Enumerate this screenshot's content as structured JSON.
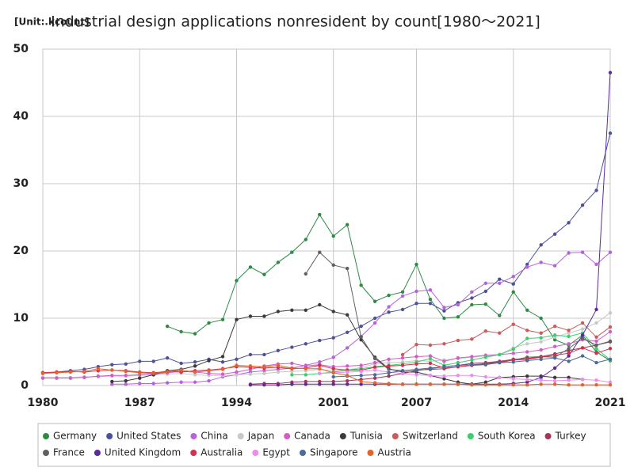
{
  "chart_data": {
    "type": "line",
    "title": "Industrial design applications nonresident by count[1980〜2021]",
    "unit_label": "[Unit:.kcount]",
    "x": [
      1980,
      1981,
      1982,
      1983,
      1984,
      1985,
      1986,
      1987,
      1988,
      1989,
      1990,
      1991,
      1992,
      1993,
      1994,
      1995,
      1996,
      1997,
      1998,
      1999,
      2000,
      2001,
      2002,
      2003,
      2004,
      2005,
      2006,
      2007,
      2008,
      2009,
      2010,
      2011,
      2012,
      2013,
      2014,
      2015,
      2016,
      2017,
      2018,
      2019,
      2020,
      2021
    ],
    "xlim": [
      1980,
      2021
    ],
    "xticks": [
      1980,
      1987,
      1994,
      2001,
      2007,
      2014,
      2021
    ],
    "ylim": [
      0,
      50
    ],
    "yticks": [
      0,
      10,
      20,
      30,
      40,
      50
    ],
    "grid": true,
    "series": [
      {
        "name": "Germany",
        "color": "#2e8b45",
        "values": [
          null,
          null,
          null,
          null,
          null,
          null,
          null,
          null,
          null,
          8.8,
          8.0,
          7.7,
          9.3,
          9.8,
          15.6,
          17.6,
          16.5,
          18.3,
          19.8,
          21.7,
          25.4,
          22.2,
          23.9,
          14.9,
          12.5,
          13.4,
          13.9,
          18.0,
          12.8,
          10.0,
          10.2,
          12.0,
          12.1,
          10.4,
          13.9,
          11.2,
          10.0,
          6.8,
          6.0,
          7.5,
          5.0,
          3.7
        ]
      },
      {
        "name": "United States",
        "color": "#4c5199",
        "values": [
          1.9,
          2.0,
          2.2,
          2.4,
          2.8,
          3.1,
          3.2,
          3.6,
          3.6,
          4.1,
          3.3,
          3.5,
          3.9,
          3.5,
          3.9,
          4.6,
          4.6,
          5.2,
          5.7,
          6.2,
          6.7,
          7.1,
          7.9,
          8.8,
          10.0,
          10.9,
          11.3,
          12.2,
          12.2,
          11.1,
          12.3,
          13.0,
          14.0,
          15.8,
          15.1,
          18.0,
          20.9,
          22.5,
          24.2,
          26.8,
          29.0,
          37.5
        ]
      },
      {
        "name": "China",
        "color": "#b463d9",
        "values": [
          null,
          null,
          null,
          null,
          null,
          0.2,
          0.2,
          0.3,
          0.3,
          0.4,
          0.5,
          0.5,
          0.7,
          1.3,
          1.6,
          2.0,
          2.2,
          2.4,
          2.6,
          3.0,
          3.5,
          4.2,
          5.6,
          7.3,
          9.3,
          11.7,
          13.3,
          14.0,
          14.2,
          11.6,
          12.0,
          13.9,
          15.2,
          15.2,
          16.2,
          17.6,
          18.3,
          17.8,
          19.7,
          19.8,
          18.0,
          19.8
        ]
      },
      {
        "name": "Japan",
        "color": "#c8c8c8",
        "values": [
          1.2,
          1.2,
          1.2,
          1.3,
          1.3,
          1.4,
          1.4,
          1.5,
          1.6,
          1.7,
          1.8,
          1.6,
          1.5,
          1.5,
          1.6,
          1.7,
          1.8,
          2.0,
          2.1,
          2.2,
          2.4,
          2.2,
          2.3,
          2.7,
          3.2,
          3.4,
          3.5,
          3.7,
          3.6,
          3.8,
          4.0,
          4.2,
          4.4,
          4.6,
          5.6,
          6.2,
          6.5,
          7.2,
          7.8,
          8.4,
          9.3,
          10.8
        ]
      },
      {
        "name": "Canada",
        "color": "#d25cc8",
        "values": [
          1.1,
          1.1,
          1.1,
          1.2,
          1.4,
          1.5,
          1.5,
          1.6,
          1.7,
          1.9,
          2.1,
          2.0,
          1.8,
          1.7,
          2.0,
          2.4,
          2.9,
          3.2,
          3.3,
          2.9,
          3.1,
          2.8,
          2.9,
          3.0,
          3.4,
          3.9,
          4.1,
          4.3,
          4.4,
          3.6,
          4.1,
          4.3,
          4.5,
          4.6,
          4.8,
          5.0,
          5.3,
          5.8,
          6.2,
          6.8,
          6.6,
          8.0
        ]
      },
      {
        "name": "Tunisia",
        "color": "#3a3a3a",
        "values": [
          null,
          null,
          null,
          null,
          null,
          0.6,
          0.7,
          1.1,
          1.6,
          2.2,
          2.4,
          2.9,
          3.7,
          4.3,
          9.8,
          10.3,
          10.3,
          11.0,
          11.2,
          11.2,
          12.0,
          11.0,
          10.5,
          6.8,
          4.2,
          2.5,
          2.0,
          2.0,
          1.5,
          1.0,
          0.5,
          0.2,
          0.5,
          1.2,
          1.3,
          1.4,
          1.4,
          1.2,
          1.2,
          0.9,
          null,
          null
        ]
      },
      {
        "name": "Switzerland",
        "color": "#c95b5b",
        "values": [
          null,
          null,
          null,
          null,
          null,
          null,
          null,
          null,
          null,
          null,
          null,
          null,
          null,
          null,
          null,
          null,
          null,
          null,
          null,
          null,
          null,
          null,
          null,
          null,
          null,
          null,
          4.6,
          6.1,
          6.0,
          6.2,
          6.7,
          6.9,
          8.1,
          7.8,
          9.1,
          8.2,
          7.8,
          8.8,
          8.2,
          9.3,
          7.2,
          8.7
        ]
      },
      {
        "name": "South Korea",
        "color": "#3dcc6e",
        "values": [
          null,
          null,
          null,
          null,
          null,
          null,
          null,
          null,
          null,
          null,
          null,
          null,
          null,
          null,
          null,
          null,
          null,
          null,
          1.6,
          1.6,
          1.8,
          2.0,
          2.3,
          2.5,
          2.8,
          3.0,
          3.2,
          3.5,
          4.0,
          3.0,
          3.4,
          3.8,
          4.2,
          4.6,
          5.4,
          7.0,
          7.1,
          7.5,
          7.3,
          7.8,
          5.5,
          3.8
        ]
      },
      {
        "name": "Turkey",
        "color": "#a3365f",
        "values": [
          null,
          null,
          null,
          null,
          null,
          null,
          null,
          null,
          null,
          null,
          null,
          null,
          null,
          null,
          null,
          0.2,
          0.3,
          0.3,
          0.5,
          0.6,
          0.6,
          0.6,
          0.7,
          0.9,
          1.1,
          1.4,
          1.8,
          2.2,
          2.5,
          2.8,
          3.0,
          3.3,
          3.4,
          3.6,
          3.9,
          4.0,
          4.3,
          4.7,
          5.2,
          5.6,
          6.0,
          6.5
        ]
      },
      {
        "name": "France",
        "color": "#606060",
        "values": [
          null,
          null,
          null,
          null,
          null,
          null,
          null,
          null,
          null,
          null,
          null,
          null,
          null,
          null,
          null,
          null,
          null,
          null,
          null,
          16.6,
          19.8,
          17.9,
          17.4,
          7.2,
          4.0,
          2.4,
          2.2,
          2.3,
          2.4,
          2.5,
          2.8,
          3.0,
          3.1,
          3.4,
          3.8,
          4.2,
          4.3,
          4.2,
          5.5,
          7.0,
          6.0,
          6.6
        ]
      },
      {
        "name": "United Kingdom",
        "color": "#5b2a9c",
        "values": [
          null,
          null,
          null,
          null,
          null,
          null,
          null,
          null,
          null,
          null,
          null,
          null,
          null,
          null,
          null,
          0.1,
          0.1,
          0.1,
          0.2,
          0.2,
          0.2,
          0.2,
          0.2,
          0.2,
          0.2,
          0.2,
          0.2,
          0.2,
          0.2,
          0.2,
          0.2,
          0.2,
          0.2,
          0.2,
          0.3,
          0.5,
          1.2,
          2.6,
          4.4,
          7.5,
          11.3,
          46.5
        ]
      },
      {
        "name": "Australia",
        "color": "#d2304c",
        "values": [
          1.9,
          2.0,
          2.1,
          2.0,
          2.2,
          2.3,
          2.2,
          2.0,
          1.9,
          2.1,
          2.0,
          2.2,
          2.3,
          2.5,
          2.8,
          2.7,
          2.6,
          2.7,
          2.5,
          2.6,
          3.0,
          2.5,
          2.3,
          2.3,
          2.7,
          2.9,
          3.0,
          3.2,
          3.3,
          2.6,
          2.8,
          3.0,
          3.3,
          3.5,
          3.8,
          3.9,
          4.2,
          4.5,
          4.8,
          5.6,
          4.8,
          5.5
        ]
      },
      {
        "name": "Egypt",
        "color": "#ec8ded",
        "values": [
          null,
          null,
          null,
          null,
          null,
          null,
          null,
          null,
          null,
          null,
          null,
          null,
          null,
          null,
          null,
          null,
          null,
          null,
          null,
          null,
          1.8,
          1.9,
          2.0,
          2.1,
          2.3,
          2.0,
          1.8,
          1.6,
          1.5,
          1.4,
          1.5,
          1.5,
          1.3,
          1.2,
          1.0,
          0.9,
          0.8,
          0.7,
          0.8,
          0.9,
          0.8,
          0.5
        ]
      },
      {
        "name": "Singapore",
        "color": "#4b6b9b",
        "values": [
          null,
          null,
          null,
          null,
          null,
          null,
          null,
          null,
          null,
          null,
          null,
          null,
          null,
          null,
          null,
          null,
          null,
          null,
          null,
          null,
          null,
          1.3,
          1.4,
          1.5,
          1.6,
          1.9,
          2.2,
          2.4,
          2.6,
          2.8,
          3.0,
          3.1,
          3.2,
          3.4,
          3.5,
          3.7,
          3.9,
          4.1,
          3.6,
          4.4,
          3.4,
          3.9
        ]
      },
      {
        "name": "Austria",
        "color": "#e3632b",
        "values": [
          1.8,
          1.9,
          2.0,
          2.1,
          2.5,
          2.3,
          2.1,
          1.9,
          1.8,
          2.0,
          2.3,
          2.0,
          2.2,
          2.4,
          3.0,
          2.9,
          2.8,
          3.0,
          2.6,
          2.5,
          2.5,
          1.9,
          1.5,
          0.6,
          0.4,
          0.3,
          0.2,
          0.2,
          0.2,
          0.2,
          0.2,
          0.1,
          0.1,
          0.1,
          0.1,
          0.1,
          0.2,
          0.2,
          0.1,
          0.1,
          0.1,
          0.1
        ]
      }
    ]
  }
}
